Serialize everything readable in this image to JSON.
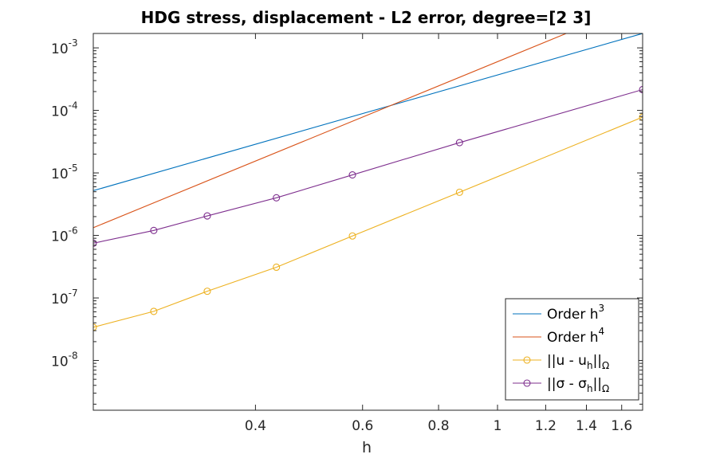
{
  "chart_data": {
    "type": "line",
    "title": "HDG stress, displacement - L2 error, degree=[2  3]",
    "xlabel": "h",
    "ylabel": "",
    "x_scale": "log",
    "y_scale": "log",
    "xlim": [
      0.2165,
      1.732
    ],
    "ylim": [
      1.6e-09,
      0.0017
    ],
    "grid": false,
    "legend_position": "bottom-right",
    "x_ticks": [
      0.4,
      0.6,
      0.8,
      1,
      1.2,
      1.4,
      1.6
    ],
    "x_tick_labels": [
      "0.4",
      "0.6",
      "0.8",
      "1",
      "1.2",
      "1.4",
      "1.6"
    ],
    "y_ticks": [
      {
        "value": 1e-08,
        "base": "10",
        "exp": "-8"
      },
      {
        "value": 1e-07,
        "base": "10",
        "exp": "-7"
      },
      {
        "value": 1e-06,
        "base": "10",
        "exp": "-6"
      },
      {
        "value": 1e-05,
        "base": "10",
        "exp": "-5"
      },
      {
        "value": 0.0001,
        "base": "10",
        "exp": "-4"
      },
      {
        "value": 0.001,
        "base": "10",
        "exp": "-3"
      }
    ],
    "series": [
      {
        "legend_main": "Order h",
        "legend_sup": "3",
        "legend_tail": "",
        "legend_sub": "",
        "color": "#0072BD",
        "marker": "none",
        "x": [
          0.2165,
          1.732
        ],
        "y": [
          5.2e-06,
          0.0017
        ]
      },
      {
        "legend_main": "Order h",
        "legend_sup": "4",
        "legend_tail": "",
        "legend_sub": "",
        "color": "#D95319",
        "marker": "none",
        "x": [
          0.2165,
          1.732
        ],
        "y": [
          1.33e-06,
          0.0054
        ]
      },
      {
        "legend_main": "||u - u",
        "legend_sup": "",
        "legend_tail": "||",
        "legend_sub_mid": "h",
        "legend_sub": "Ω",
        "color": "#EDB120",
        "marker": "circle",
        "x": [
          0.2165,
          0.2722,
          0.3333,
          0.433,
          0.5774,
          0.866,
          1.732
        ],
        "y": [
          3.4e-08,
          6.1e-08,
          1.28e-07,
          3.1e-07,
          9.8e-07,
          4.9e-06,
          7.8e-05
        ]
      },
      {
        "legend_main": "||σ - σ",
        "legend_sup": "",
        "legend_tail": "||",
        "legend_sub_mid": "h",
        "legend_sub": "Ω",
        "color": "#7E2F8E",
        "marker": "circle",
        "x": [
          0.2165,
          0.2722,
          0.3333,
          0.433,
          0.5774,
          0.866,
          1.732
        ],
        "y": [
          7.5e-07,
          1.2e-06,
          2.05e-06,
          4e-06,
          9.3e-06,
          3.05e-05,
          0.000215
        ]
      }
    ]
  }
}
